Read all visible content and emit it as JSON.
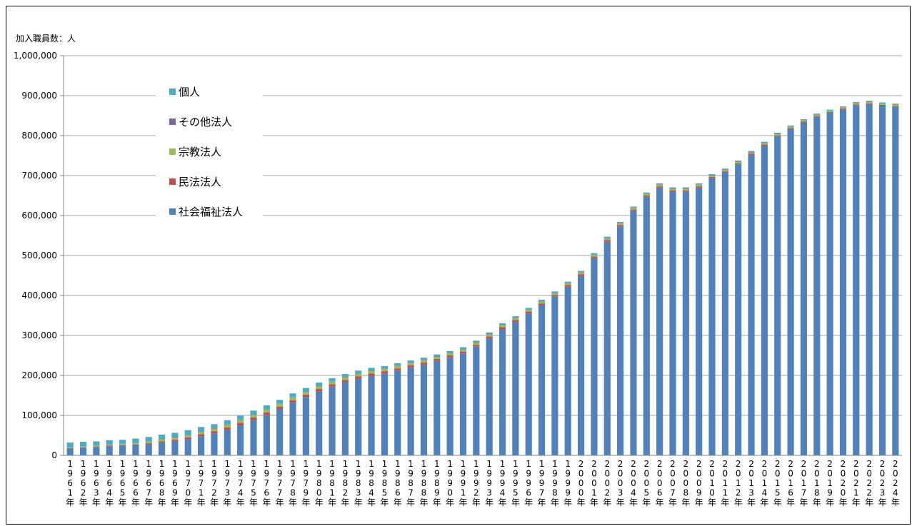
{
  "chart_data": {
    "type": "bar",
    "stacked": true,
    "ylabel": "加入職員数：人",
    "ylim": [
      0,
      1000000
    ],
    "yticks": [
      0,
      100000,
      200000,
      300000,
      400000,
      500000,
      600000,
      700000,
      800000,
      900000,
      1000000
    ],
    "ytick_labels": [
      "0",
      "100,000",
      "200,000",
      "300,000",
      "400,000",
      "500,000",
      "600,000",
      "700,000",
      "800,000",
      "900,000",
      "1,000,000"
    ],
    "grid": true,
    "legend_position": "upper-left",
    "categories": [
      "1961年",
      "1962年",
      "1963年",
      "1964年",
      "1965年",
      "1966年",
      "1967年",
      "1968年",
      "1969年",
      "1970年",
      "1971年",
      "1972年",
      "1973年",
      "1974年",
      "1975年",
      "1976年",
      "1977年",
      "1978年",
      "1979年",
      "1980年",
      "1981年",
      "1982年",
      "1983年",
      "1984年",
      "1985年",
      "1986年",
      "1987年",
      "1988年",
      "1989年",
      "1990年",
      "1991年",
      "1992年",
      "1993年",
      "1994年",
      "1995年",
      "1996年",
      "1997年",
      "1998年",
      "1999年",
      "2000年",
      "2001年",
      "2002年",
      "2003年",
      "2004年",
      "2005年",
      "2006年",
      "2007年",
      "2008年",
      "2009年",
      "2010年",
      "2011年",
      "2012年",
      "2013年",
      "2014年",
      "2015年",
      "2016年",
      "2017年",
      "2018年",
      "2019年",
      "2020年",
      "2021年",
      "2022年",
      "2023年",
      "2024年"
    ],
    "series": [
      {
        "name": "社会福祉法人",
        "color": "#4f81bd",
        "values": [
          17000,
          19000,
          21000,
          23000,
          24000,
          25000,
          28000,
          32000,
          36000,
          41000,
          48000,
          55000,
          64000,
          75000,
          88000,
          101000,
          116000,
          132000,
          146000,
          160000,
          172000,
          183000,
          192000,
          199000,
          205000,
          212000,
          220000,
          227000,
          236000,
          245000,
          255000,
          272000,
          293000,
          316000,
          334000,
          355000,
          376000,
          397000,
          422000,
          449000,
          494000,
          535000,
          573000,
          612000,
          647000,
          670000,
          660000,
          660000,
          670000,
          694000,
          708000,
          728000,
          752000,
          775000,
          798000,
          817000,
          833000,
          847000,
          857000,
          865000,
          876000,
          879000,
          875000,
          872000
        ]
      },
      {
        "name": "民法法人",
        "color": "#c0504d",
        "values": [
          1000,
          1000,
          1000,
          1500,
          1500,
          2000,
          2500,
          3000,
          3500,
          4000,
          5000,
          5500,
          6000,
          6500,
          6500,
          6500,
          6000,
          6000,
          6000,
          6000,
          6000,
          6000,
          6000,
          6000,
          5500,
          5500,
          5000,
          5000,
          5000,
          5000,
          4500,
          4500,
          4500,
          4500,
          4500,
          4500,
          4000,
          4000,
          4000,
          4000,
          3500,
          3500,
          3500,
          3000,
          3000,
          3000,
          3000,
          3000,
          3000,
          2500,
          2500,
          2500,
          2500,
          2500,
          2000,
          2000,
          2000,
          2000,
          2000,
          2000,
          2000,
          2000,
          2000,
          2000
        ]
      },
      {
        "name": "宗教法人",
        "color": "#9bbb59",
        "values": [
          2000,
          2000,
          2000,
          2500,
          3000,
          3500,
          4000,
          4500,
          5000,
          5500,
          6000,
          6500,
          7000,
          7000,
          7000,
          7000,
          7000,
          7000,
          7000,
          7000,
          6500,
          6500,
          6500,
          6500,
          6000,
          6000,
          6000,
          6000,
          5500,
          5500,
          5500,
          5500,
          5000,
          5000,
          5000,
          5000,
          5000,
          4500,
          4500,
          4500,
          4500,
          4500,
          4000,
          4000,
          4000,
          4000,
          4000,
          4000,
          4000,
          3500,
          3500,
          3500,
          3500,
          3500,
          3500,
          3500,
          3000,
          3000,
          3000,
          3000,
          3000,
          3000,
          3000,
          3000
        ]
      },
      {
        "name": "その他法人",
        "color": "#8064a2",
        "values": [
          500,
          500,
          500,
          500,
          500,
          500,
          500,
          1000,
          1000,
          1000,
          1000,
          1000,
          1000,
          1000,
          1000,
          1000,
          1000,
          1000,
          1000,
          1000,
          1000,
          1000,
          1000,
          1000,
          1000,
          1000,
          1000,
          1000,
          1000,
          1000,
          1000,
          1000,
          1000,
          1000,
          1000,
          1000,
          1000,
          1000,
          1000,
          1000,
          1000,
          1000,
          1000,
          1000,
          1000,
          1000,
          1000,
          1000,
          1000,
          1000,
          1000,
          1000,
          1000,
          1000,
          1000,
          1000,
          1000,
          1000,
          1000,
          1000,
          1000,
          1000,
          1000,
          1000
        ]
      },
      {
        "name": "個人",
        "color": "#4bacc6",
        "values": [
          11500,
          11500,
          10500,
          10500,
          10000,
          11000,
          11000,
          11500,
          11000,
          11500,
          11000,
          10000,
          10000,
          9500,
          9500,
          9500,
          9000,
          9000,
          8500,
          8000,
          7500,
          7000,
          6500,
          6500,
          6000,
          6000,
          5500,
          5500,
          5000,
          4500,
          4500,
          4000,
          4000,
          4000,
          3500,
          3500,
          3500,
          3500,
          3000,
          3000,
          3000,
          3000,
          2500,
          2500,
          2500,
          2500,
          2500,
          2500,
          2500,
          2500,
          2500,
          2500,
          2500,
          2500,
          2500,
          2000,
          2000,
          2000,
          2000,
          2000,
          2000,
          2000,
          2000,
          2000
        ]
      }
    ],
    "legend_order": [
      "個人",
      "その他法人",
      "宗教法人",
      "民法法人",
      "社会福祉法人"
    ]
  }
}
